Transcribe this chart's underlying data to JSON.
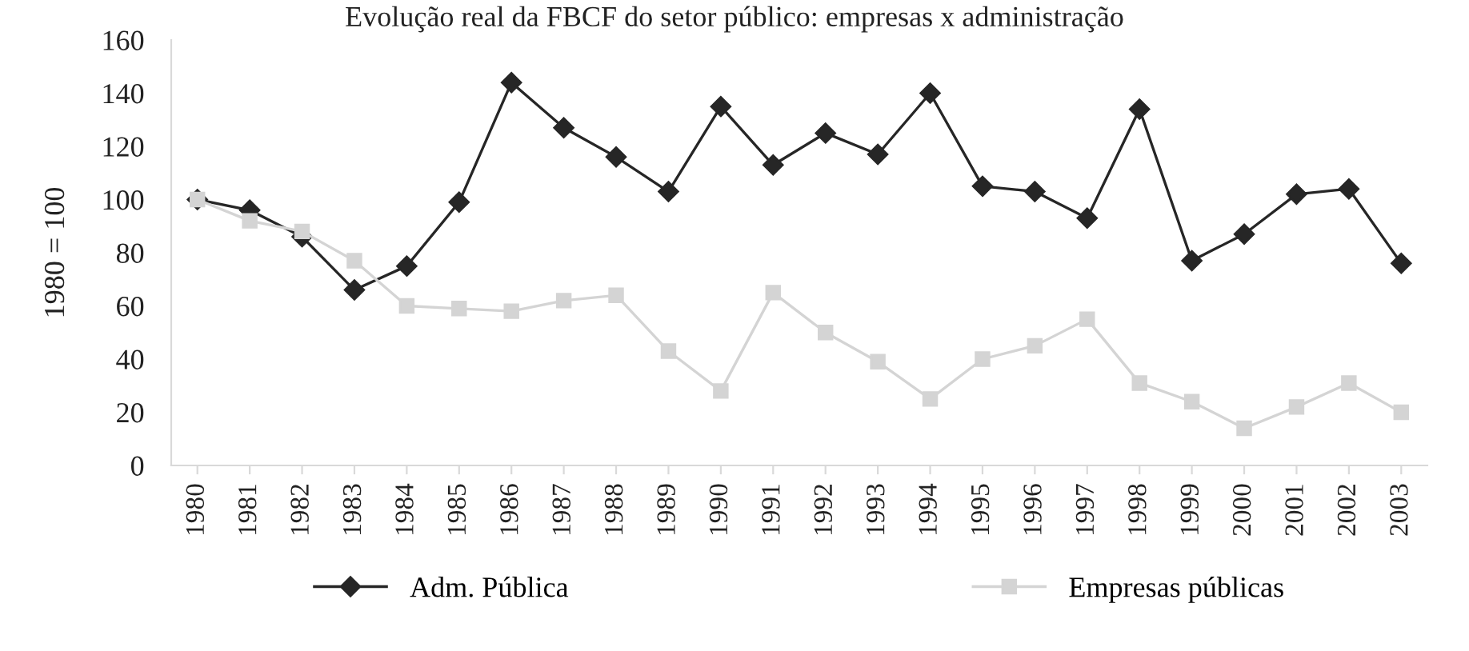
{
  "chart_data": {
    "type": "line",
    "title": "Evolução real da FBCF do setor público: empresas x administração",
    "ylabel": "1980 = 100",
    "categories": [
      "1980",
      "1981",
      "1982",
      "1983",
      "1984",
      "1985",
      "1986",
      "1987",
      "1988",
      "1989",
      "1990",
      "1991",
      "1992",
      "1993",
      "1994",
      "1995",
      "1996",
      "1997",
      "1998",
      "1999",
      "2000",
      "2001",
      "2002",
      "2003"
    ],
    "series": [
      {
        "name": "Adm. Pública",
        "color": "#262626",
        "marker": "diamond",
        "values": [
          100,
          96,
          86,
          66,
          75,
          99,
          144,
          127,
          116,
          103,
          135,
          113,
          125,
          117,
          140,
          105,
          103,
          93,
          134,
          77,
          87,
          102,
          104,
          76
        ]
      },
      {
        "name": "Empresas públicas",
        "color": "#d4d4d4",
        "marker": "square",
        "values": [
          100,
          92,
          88,
          77,
          60,
          59,
          58,
          62,
          64,
          43,
          28,
          65,
          50,
          39,
          25,
          40,
          45,
          55,
          31,
          24,
          14,
          22,
          31,
          20
        ]
      }
    ],
    "ylim": [
      0,
      160
    ],
    "yticks": [
      0,
      20,
      40,
      60,
      80,
      100,
      120,
      140,
      160
    ],
    "grid": false,
    "legend": "bottom",
    "line_style": "solid"
  }
}
